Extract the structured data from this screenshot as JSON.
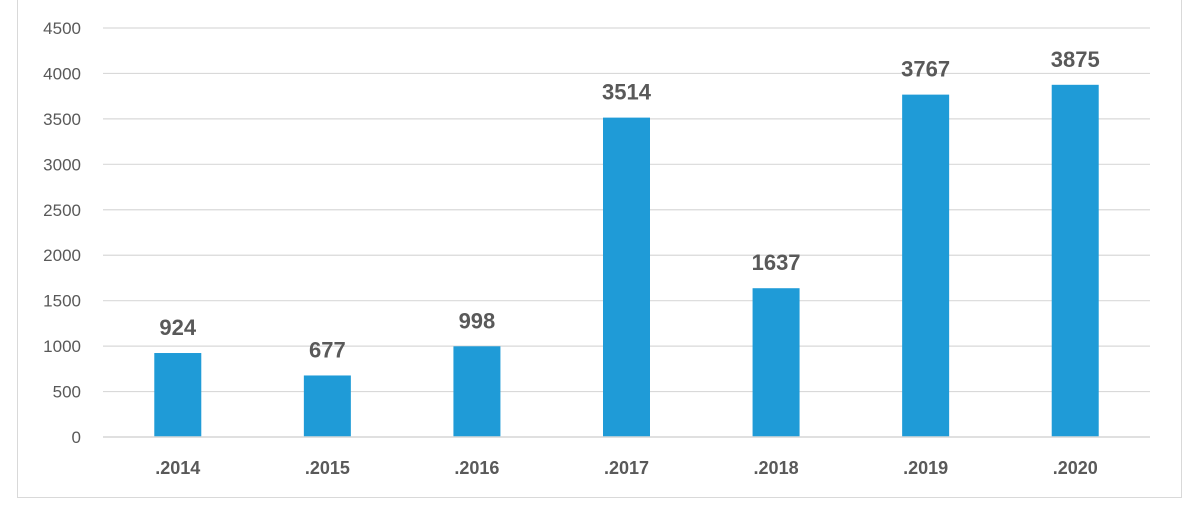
{
  "chart_data": {
    "type": "bar",
    "title": "",
    "xlabel": "",
    "ylabel": "",
    "categories": [
      ".2014",
      ".2015",
      ".2016",
      ".2017",
      ".2018",
      ".2019",
      ".2020"
    ],
    "values": [
      924,
      677,
      998,
      3514,
      1637,
      3767,
      3875
    ],
    "data_labels": [
      "924",
      "677",
      "998",
      "3514",
      "1637",
      "3767",
      "3875"
    ],
    "ylim": [
      0,
      4500
    ],
    "yticks": [
      "0",
      "500",
      "1000",
      "1500",
      "2000",
      "2500",
      "3000",
      "3500",
      "4000",
      "4500"
    ],
    "grid": true,
    "legend": "none",
    "bar_color": "#1f9bd7"
  }
}
